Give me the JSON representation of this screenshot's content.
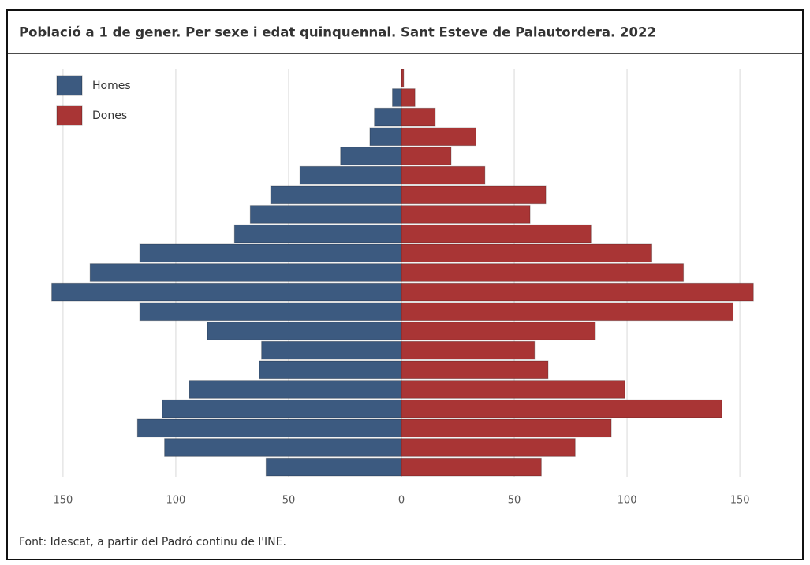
{
  "chart_data": {
    "type": "pyramid",
    "title": "Població a 1 de gener. Per sexe i edat quinquennal. Sant Esteve de Palautordera. 2022",
    "source": "Font: Idescat, a partir del Padró continu de l'INE.",
    "series": [
      {
        "name": "Homes",
        "color": "#3c5a80",
        "side": "left",
        "values": [
          60,
          105,
          117,
          106,
          94,
          63,
          62,
          86,
          116,
          155,
          138,
          116,
          74,
          67,
          58,
          45,
          27,
          14,
          12,
          4,
          0
        ]
      },
      {
        "name": "Dones",
        "color": "#a93535",
        "side": "right",
        "values": [
          62,
          77,
          93,
          142,
          99,
          65,
          59,
          86,
          147,
          156,
          125,
          111,
          84,
          57,
          64,
          37,
          22,
          33,
          15,
          6,
          1
        ]
      }
    ],
    "xlim": [
      -158,
      158
    ],
    "xticks": [
      {
        "value": -150,
        "label": "150"
      },
      {
        "value": -100,
        "label": "100"
      },
      {
        "value": -50,
        "label": "50"
      },
      0,
      50,
      100,
      150
    ],
    "grid": true,
    "legend": "top-left"
  }
}
